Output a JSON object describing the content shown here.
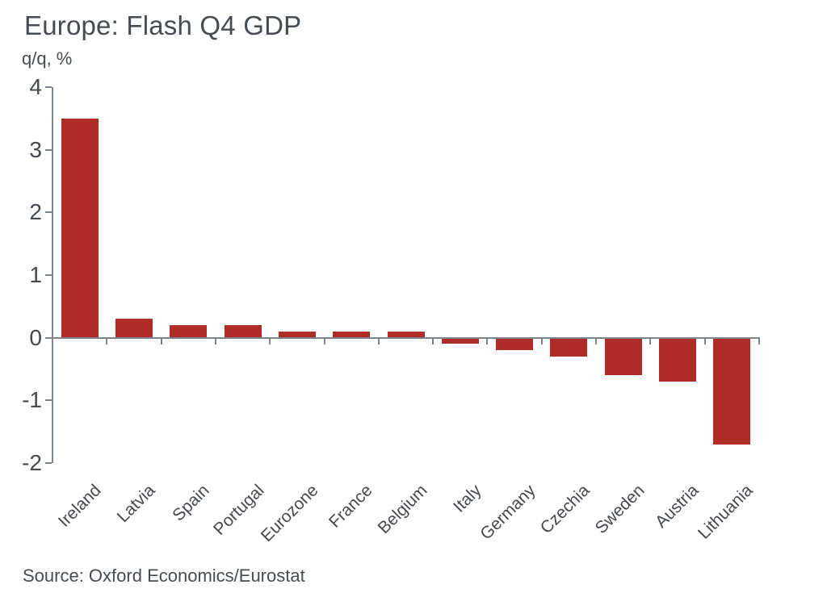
{
  "chart_data": {
    "type": "bar",
    "title": "Europe: Flash Q4 GDP",
    "subtitle": "q/q, %",
    "ylabel": "q/q, %",
    "xlabel": "",
    "categories": [
      "Ireland",
      "Latvia",
      "Spain",
      "Portugal",
      "Eurozone",
      "France",
      "Belgium",
      "Italy",
      "Germany",
      "Czechia",
      "Sweden",
      "Austria",
      "Lithuania"
    ],
    "values": [
      3.5,
      0.3,
      0.2,
      0.2,
      0.1,
      0.1,
      0.1,
      -0.1,
      -0.2,
      -0.3,
      -0.6,
      -0.7,
      -1.7
    ],
    "yticks": [
      4,
      3,
      2,
      1,
      0,
      -1,
      -2
    ],
    "ylim": [
      -2,
      4
    ],
    "grid": false,
    "legend": false,
    "bar_color": "#b02c28",
    "axis_color": "#7e848b",
    "text_color": "#45494f",
    "source": "Source: Oxford Economics/Eurostat"
  }
}
